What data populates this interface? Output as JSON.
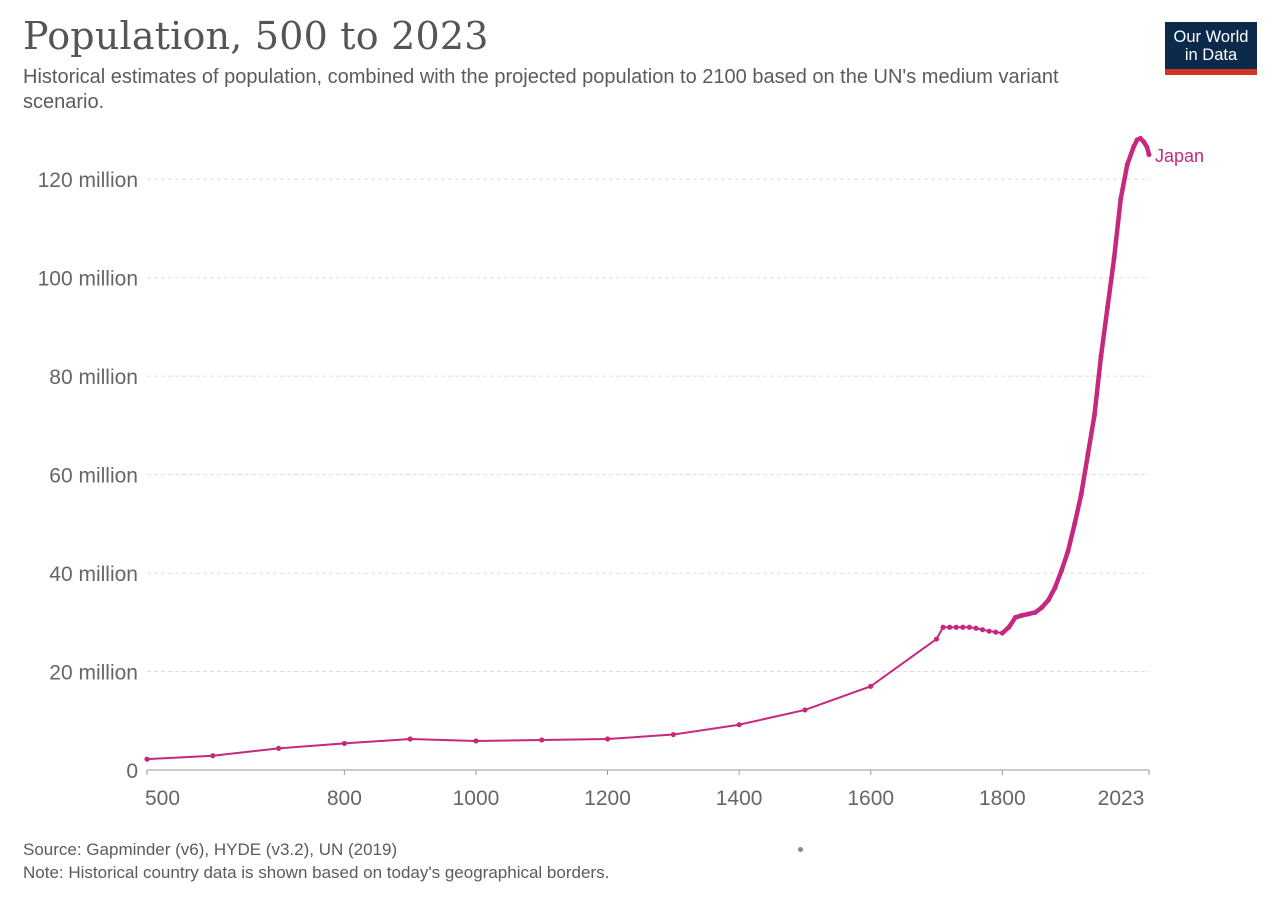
{
  "header": {
    "title": "Population, 500 to 2023",
    "subtitle": "Historical estimates of population, combined with the projected population to 2100 based on the UN's medium variant scenario."
  },
  "logo": {
    "line1": "Our World",
    "line2": "in Data",
    "bg_color": "#0b2a4b",
    "accent_color": "#d0361f"
  },
  "footer": {
    "source": "Source: Gapminder (v6), HYDE (v3.2), UN (2019)",
    "note": "Note: Historical country data is shown based on today's geographical borders."
  },
  "chart_data": {
    "type": "line",
    "title": "Population, 500 to 2023",
    "xlabel": "",
    "ylabel": "",
    "xlim": [
      500,
      2023
    ],
    "ylim": [
      0,
      130000000
    ],
    "grid": true,
    "x_ticks": [
      500,
      800,
      1000,
      1200,
      1400,
      1600,
      1800,
      2023
    ],
    "y_ticks": [
      {
        "value": 0,
        "label": "0"
      },
      {
        "value": 20000000,
        "label": "20 million"
      },
      {
        "value": 40000000,
        "label": "40 million"
      },
      {
        "value": 60000000,
        "label": "60 million"
      },
      {
        "value": 80000000,
        "label": "80 million"
      },
      {
        "value": 100000000,
        "label": "100 million"
      },
      {
        "value": 120000000,
        "label": "120 million"
      }
    ],
    "series": [
      {
        "name": "Japan",
        "color": "#c6287f",
        "x": [
          500,
          600,
          700,
          800,
          900,
          1000,
          1100,
          1200,
          1300,
          1400,
          1500,
          1600,
          1700,
          1710,
          1720,
          1730,
          1740,
          1750,
          1760,
          1770,
          1780,
          1790,
          1800,
          1810,
          1820,
          1830,
          1840,
          1850,
          1860,
          1870,
          1880,
          1890,
          1900,
          1910,
          1920,
          1930,
          1940,
          1950,
          1960,
          1970,
          1980,
          1990,
          2000,
          2005,
          2010,
          2015,
          2020,
          2023
        ],
        "values": [
          2200000,
          2900000,
          4400000,
          5400000,
          6300000,
          5900000,
          6100000,
          6300000,
          7200000,
          9200000,
          12200000,
          17000000,
          26600000,
          29000000,
          29000000,
          29000000,
          29000000,
          29000000,
          28800000,
          28500000,
          28200000,
          28000000,
          27800000,
          29000000,
          31000000,
          31400000,
          31700000,
          32000000,
          33000000,
          34500000,
          37000000,
          40500000,
          44500000,
          50000000,
          56000000,
          64000000,
          72000000,
          84000000,
          94000000,
          104000000,
          116000000,
          123000000,
          126700000,
          128000000,
          128300000,
          127600000,
          126500000,
          125000000
        ]
      }
    ]
  }
}
